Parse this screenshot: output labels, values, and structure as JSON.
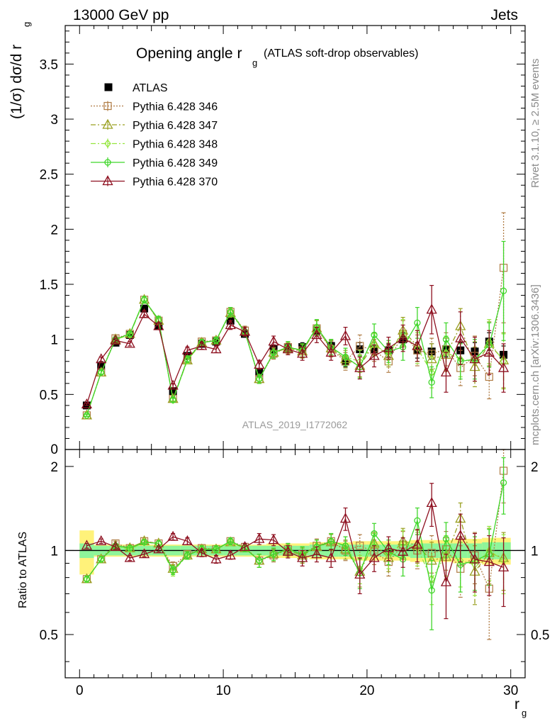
{
  "header": {
    "energy_label": "13000 GeV pp",
    "category_label": "Jets"
  },
  "side_labels": {
    "rivet_label": "Rivet 3.1.10, ≥ 2.5M events",
    "mcplots_label": "mcplots.cern.ch [arXiv:1306.3436]"
  },
  "analysis_id": "ATLAS_2019_I1772062",
  "colors": {
    "ATLAS": "#000000",
    "p346": "#b07c45",
    "p347": "#9aa022",
    "p348": "#94e63e",
    "p349": "#3fd62a",
    "p370": "#8e1020",
    "band_yellow": "#fff27a",
    "band_green": "#8ef59a"
  },
  "chart_data": [
    {
      "type": "scatter",
      "panel": "main",
      "title_main": "Opening angle r",
      "title_sub": "g",
      "title_suffix": "(ATLAS soft-drop observables)",
      "ylabel": "(1/σ) dσ/d r",
      "ylabel_sub": "g",
      "xlim": [
        -1,
        31
      ],
      "ylim": [
        0,
        3.85
      ],
      "yticks": [
        {
          "v": 0.5,
          "label": "0.5"
        },
        {
          "v": 1.0,
          "label": "1"
        },
        {
          "v": 1.5,
          "label": "1.5"
        },
        {
          "v": 2.0,
          "label": "2"
        },
        {
          "v": 2.5,
          "label": "2.5"
        },
        {
          "v": 3.0,
          "label": "3"
        },
        {
          "v": 3.5,
          "label": "3.5"
        }
      ],
      "x": [
        0.5,
        1.5,
        2.5,
        3.5,
        4.5,
        5.5,
        6.5,
        7.5,
        8.5,
        9.5,
        10.5,
        11.5,
        12.5,
        13.5,
        14.5,
        15.5,
        16.5,
        17.5,
        18.5,
        19.5,
        20.5,
        21.5,
        22.5,
        23.5,
        24.5,
        25.5,
        26.5,
        27.5,
        28.5,
        29.5
      ],
      "series": [
        {
          "name": "ATLAS",
          "key": "ATLAS",
          "marker": "square",
          "line": "none",
          "values": [
            0.4,
            0.76,
            0.97,
            1.04,
            1.28,
            1.12,
            0.53,
            0.85,
            0.96,
            0.98,
            1.17,
            1.05,
            0.7,
            0.91,
            0.92,
            0.93,
            1.08,
            0.94,
            0.8,
            0.91,
            0.91,
            0.9,
            1.0,
            0.9,
            0.89,
            0.91,
            0.9,
            0.89,
            0.98,
            0.86
          ],
          "errors": [
            0.02,
            0.02,
            0.02,
            0.02,
            0.02,
            0.02,
            0.02,
            0.03,
            0.03,
            0.03,
            0.03,
            0.03,
            0.03,
            0.04,
            0.04,
            0.04,
            0.05,
            0.05,
            0.05,
            0.06,
            0.06,
            0.06,
            0.06,
            0.07,
            0.07,
            0.07,
            0.07,
            0.08,
            0.08,
            0.08
          ]
        },
        {
          "name": "Pythia 6.428 346",
          "key": "p346",
          "marker": "square-open",
          "line": "dotted",
          "values": [
            0.31,
            0.7,
            1.01,
            1.05,
            1.36,
            1.17,
            0.46,
            0.82,
            0.98,
            0.99,
            1.25,
            1.08,
            0.64,
            0.87,
            0.93,
            0.9,
            1.1,
            0.91,
            0.8,
            0.94,
            0.9,
            0.8,
            1.05,
            0.9,
            0.87,
            0.91,
            0.74,
            0.85,
            0.66,
            1.65
          ],
          "errors": [
            0.01,
            0.02,
            0.02,
            0.02,
            0.03,
            0.03,
            0.02,
            0.03,
            0.03,
            0.03,
            0.04,
            0.04,
            0.04,
            0.05,
            0.05,
            0.06,
            0.07,
            0.07,
            0.08,
            0.1,
            0.1,
            0.1,
            0.12,
            0.14,
            0.14,
            0.15,
            0.16,
            0.18,
            0.2,
            0.5
          ]
        },
        {
          "name": "Pythia 6.428 347",
          "key": "p347",
          "marker": "triangle-open",
          "line": "dashdot",
          "values": [
            0.31,
            0.7,
            1.0,
            1.05,
            1.36,
            1.17,
            0.46,
            0.81,
            0.97,
            0.99,
            1.24,
            1.07,
            0.64,
            0.88,
            0.92,
            0.89,
            1.1,
            0.92,
            0.82,
            0.76,
            0.96,
            0.85,
            1.08,
            0.94,
            0.82,
            0.86,
            1.12,
            0.75,
            0.96,
            0.81
          ],
          "errors": [
            0.01,
            0.02,
            0.02,
            0.02,
            0.03,
            0.03,
            0.02,
            0.03,
            0.03,
            0.03,
            0.04,
            0.04,
            0.04,
            0.05,
            0.05,
            0.06,
            0.07,
            0.07,
            0.08,
            0.1,
            0.1,
            0.1,
            0.12,
            0.14,
            0.14,
            0.15,
            0.16,
            0.18,
            0.2,
            0.25
          ]
        },
        {
          "name": "Pythia 6.428 348",
          "key": "p348",
          "marker": "diamond-open",
          "line": "dashdot",
          "values": [
            0.31,
            0.7,
            1.0,
            1.04,
            1.36,
            1.18,
            0.45,
            0.81,
            0.97,
            0.99,
            1.25,
            1.07,
            0.64,
            0.88,
            0.93,
            0.9,
            1.11,
            0.93,
            0.84,
            0.8,
            0.95,
            0.87,
            1.06,
            0.92,
            0.7,
            0.88,
            0.82,
            0.8,
            0.98,
            0.8
          ],
          "errors": [
            0.01,
            0.02,
            0.02,
            0.02,
            0.03,
            0.03,
            0.02,
            0.03,
            0.03,
            0.03,
            0.04,
            0.04,
            0.04,
            0.05,
            0.05,
            0.06,
            0.07,
            0.07,
            0.08,
            0.1,
            0.1,
            0.1,
            0.12,
            0.14,
            0.14,
            0.15,
            0.16,
            0.18,
            0.2,
            0.25
          ]
        },
        {
          "name": "Pythia 6.428 349",
          "key": "p349",
          "marker": "circle-open",
          "line": "solid",
          "values": [
            0.31,
            0.7,
            1.0,
            1.05,
            1.36,
            1.18,
            0.45,
            0.82,
            0.97,
            0.99,
            1.25,
            1.07,
            0.64,
            0.88,
            0.93,
            0.9,
            1.11,
            0.93,
            0.84,
            0.75,
            1.04,
            0.89,
            0.93,
            1.15,
            0.61,
            1.0,
            0.8,
            0.82,
            0.95,
            1.44
          ],
          "errors": [
            0.01,
            0.02,
            0.02,
            0.02,
            0.03,
            0.03,
            0.02,
            0.03,
            0.03,
            0.03,
            0.04,
            0.04,
            0.04,
            0.05,
            0.05,
            0.06,
            0.07,
            0.07,
            0.08,
            0.1,
            0.1,
            0.1,
            0.12,
            0.14,
            0.14,
            0.15,
            0.16,
            0.18,
            0.2,
            0.45
          ]
        },
        {
          "name": "Pythia 6.428 370",
          "key": "p370",
          "marker": "triangle-open",
          "line": "solid",
          "values": [
            0.41,
            0.82,
            0.99,
            0.96,
            1.23,
            1.12,
            0.58,
            0.9,
            0.94,
            0.91,
            1.13,
            1.07,
            0.77,
            0.98,
            0.91,
            0.87,
            1.04,
            0.88,
            1.03,
            0.74,
            0.85,
            0.92,
            1.01,
            0.94,
            1.27,
            0.7,
            1.01,
            0.82,
            0.88,
            0.74
          ],
          "errors": [
            0.01,
            0.02,
            0.02,
            0.02,
            0.03,
            0.03,
            0.02,
            0.03,
            0.03,
            0.03,
            0.04,
            0.04,
            0.04,
            0.05,
            0.05,
            0.06,
            0.07,
            0.07,
            0.08,
            0.1,
            0.1,
            0.1,
            0.12,
            0.14,
            0.22,
            0.18,
            0.24,
            0.2,
            0.2,
            0.22
          ]
        }
      ]
    },
    {
      "type": "scatter",
      "panel": "ratio",
      "ylabel": "Ratio to ATLAS",
      "xlabel": "r",
      "xlabel_sub": "g",
      "xlim": [
        -1,
        31
      ],
      "ylim": [
        0.35,
        2.3
      ],
      "reference_line": 1.0,
      "yticks": [
        {
          "v": 0.5,
          "label": "0.5"
        },
        {
          "v": 1.0,
          "label": "1"
        },
        {
          "v": 2.0,
          "label": "2"
        }
      ],
      "xticks": [
        {
          "v": 0,
          "label": "0"
        },
        {
          "v": 10,
          "label": "10"
        },
        {
          "v": 20,
          "label": "20"
        },
        {
          "v": 30,
          "label": "30"
        }
      ],
      "x": [
        0.5,
        1.5,
        2.5,
        3.5,
        4.5,
        5.5,
        6.5,
        7.5,
        8.5,
        9.5,
        10.5,
        11.5,
        12.5,
        13.5,
        14.5,
        15.5,
        16.5,
        17.5,
        18.5,
        19.5,
        20.5,
        21.5,
        22.5,
        23.5,
        24.5,
        25.5,
        26.5,
        27.5,
        28.5,
        29.5
      ],
      "band_outer": [
        0.18,
        0.05,
        0.05,
        0.05,
        0.05,
        0.05,
        0.05,
        0.05,
        0.05,
        0.05,
        0.05,
        0.05,
        0.05,
        0.06,
        0.06,
        0.06,
        0.07,
        0.07,
        0.07,
        0.08,
        0.08,
        0.08,
        0.08,
        0.09,
        0.09,
        0.09,
        0.1,
        0.1,
        0.11,
        0.11
      ],
      "band_inner": [
        0.06,
        0.04,
        0.04,
        0.04,
        0.04,
        0.04,
        0.04,
        0.04,
        0.04,
        0.04,
        0.04,
        0.04,
        0.04,
        0.04,
        0.04,
        0.04,
        0.05,
        0.05,
        0.05,
        0.05,
        0.05,
        0.05,
        0.05,
        0.06,
        0.06,
        0.06,
        0.06,
        0.06,
        0.07,
        0.07
      ],
      "series": [
        {
          "name": "Pythia 6.428 346",
          "key": "p346",
          "marker": "square-open",
          "line": "dotted",
          "values": [
            0.79,
            0.93,
            1.06,
            1.02,
            1.08,
            1.06,
            0.88,
            0.97,
            1.02,
            1.01,
            1.08,
            1.03,
            0.92,
            0.96,
            1.01,
            0.97,
            1.04,
            1.08,
            1.0,
            1.04,
            0.99,
            0.91,
            1.05,
            1.0,
            0.98,
            1.01,
            0.86,
            0.96,
            0.73,
            1.93
          ],
          "errors": [
            0.02,
            0.02,
            0.02,
            0.02,
            0.02,
            0.02,
            0.03,
            0.03,
            0.03,
            0.03,
            0.03,
            0.03,
            0.05,
            0.05,
            0.05,
            0.06,
            0.06,
            0.07,
            0.08,
            0.1,
            0.1,
            0.1,
            0.12,
            0.14,
            0.15,
            0.16,
            0.18,
            0.2,
            0.25,
            0.45
          ]
        },
        {
          "name": "Pythia 6.428 347",
          "key": "p347",
          "marker": "triangle-open",
          "line": "dashdot",
          "values": [
            0.79,
            0.93,
            1.04,
            1.02,
            1.08,
            1.06,
            0.86,
            0.96,
            1.01,
            1.01,
            1.07,
            1.02,
            0.92,
            0.97,
            1.0,
            0.96,
            1.03,
            1.07,
            1.01,
            0.84,
            1.06,
            0.94,
            1.08,
            1.04,
            0.92,
            0.95,
            1.3,
            0.84,
            0.98,
            0.94
          ],
          "errors": [
            0.02,
            0.02,
            0.02,
            0.02,
            0.02,
            0.02,
            0.03,
            0.03,
            0.03,
            0.03,
            0.03,
            0.03,
            0.05,
            0.05,
            0.05,
            0.06,
            0.06,
            0.07,
            0.08,
            0.1,
            0.1,
            0.1,
            0.12,
            0.14,
            0.15,
            0.16,
            0.18,
            0.2,
            0.22,
            0.22
          ]
        },
        {
          "name": "Pythia 6.428 348",
          "key": "p348",
          "marker": "diamond-open",
          "line": "dashdot",
          "values": [
            0.79,
            0.93,
            1.04,
            1.01,
            1.07,
            1.06,
            0.84,
            0.96,
            1.01,
            1.01,
            1.07,
            1.02,
            0.92,
            0.97,
            1.01,
            0.97,
            1.03,
            1.08,
            1.04,
            0.86,
            1.05,
            0.96,
            1.06,
            1.02,
            0.79,
            0.97,
            0.92,
            0.89,
            1.0,
            0.92
          ],
          "errors": [
            0.02,
            0.02,
            0.02,
            0.02,
            0.02,
            0.02,
            0.03,
            0.03,
            0.03,
            0.03,
            0.03,
            0.03,
            0.05,
            0.05,
            0.05,
            0.06,
            0.06,
            0.07,
            0.08,
            0.1,
            0.1,
            0.1,
            0.12,
            0.14,
            0.15,
            0.16,
            0.18,
            0.2,
            0.22,
            0.22
          ]
        },
        {
          "name": "Pythia 6.428 349",
          "key": "p349",
          "marker": "circle-open",
          "line": "solid",
          "values": [
            0.79,
            0.93,
            1.04,
            1.02,
            1.07,
            1.06,
            0.85,
            0.96,
            1.01,
            1.01,
            1.08,
            1.02,
            0.92,
            0.97,
            1.01,
            0.97,
            1.03,
            1.08,
            1.04,
            0.83,
            1.15,
            0.99,
            0.93,
            1.28,
            0.72,
            1.1,
            0.89,
            0.92,
            0.97,
            1.75
          ],
          "errors": [
            0.02,
            0.02,
            0.02,
            0.02,
            0.02,
            0.02,
            0.03,
            0.03,
            0.03,
            0.03,
            0.03,
            0.03,
            0.05,
            0.05,
            0.05,
            0.06,
            0.06,
            0.07,
            0.08,
            0.1,
            0.1,
            0.1,
            0.12,
            0.14,
            0.2,
            0.16,
            0.18,
            0.2,
            0.22,
            0.4
          ]
        },
        {
          "name": "Pythia 6.428 370",
          "key": "p370",
          "marker": "triangle-open",
          "line": "solid",
          "values": [
            1.04,
            1.08,
            1.03,
            0.94,
            0.97,
            1.01,
            1.12,
            1.08,
            0.98,
            0.93,
            0.96,
            1.03,
            1.1,
            1.09,
            0.99,
            0.94,
            0.97,
            0.94,
            1.3,
            0.82,
            0.94,
            1.02,
            0.99,
            1.05,
            1.48,
            0.77,
            1.13,
            0.93,
            0.91,
            0.87
          ],
          "errors": [
            0.02,
            0.02,
            0.02,
            0.02,
            0.02,
            0.02,
            0.03,
            0.03,
            0.03,
            0.03,
            0.03,
            0.03,
            0.05,
            0.05,
            0.05,
            0.06,
            0.06,
            0.07,
            0.12,
            0.12,
            0.1,
            0.1,
            0.12,
            0.14,
            0.26,
            0.2,
            0.22,
            0.22,
            0.22,
            0.24
          ]
        }
      ]
    }
  ]
}
